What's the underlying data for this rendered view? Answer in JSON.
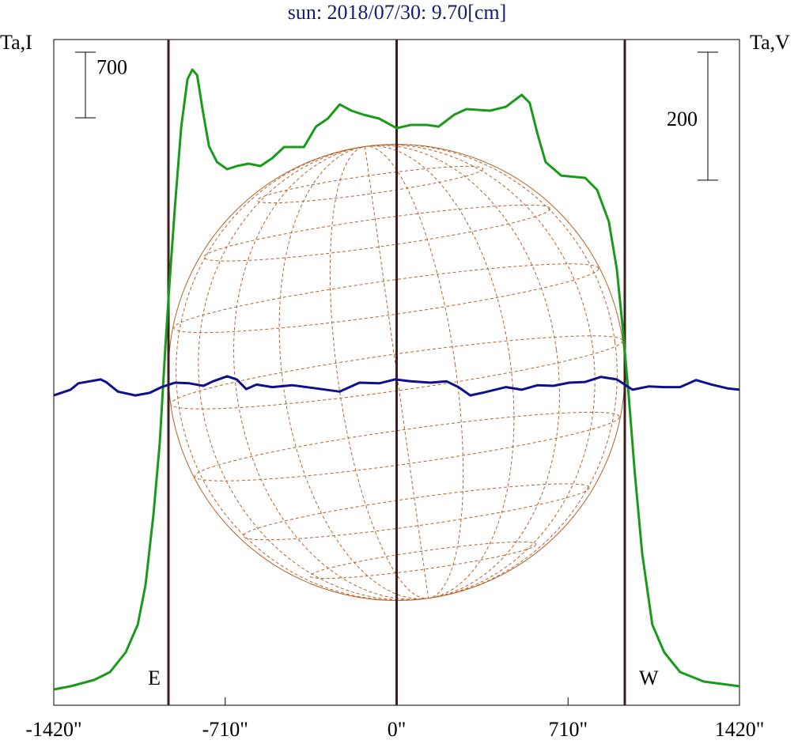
{
  "chart_data": {
    "type": "line",
    "title": "sun: 2018/07/30: 9.70[cm]",
    "ylabel": "Ta,I",
    "y2label": "Ta,V",
    "xlim": [
      -1420,
      1420
    ],
    "xticks": [
      {
        "value": -1420,
        "label": "-1420\""
      },
      {
        "value": -710,
        "label": "-710\""
      },
      {
        "value": 0,
        "label": "0\""
      },
      {
        "value": 710,
        "label": "710\""
      },
      {
        "value": 1420,
        "label": "1420\""
      }
    ],
    "ylim": [
      0,
      7100
    ],
    "y2lim": [
      -520,
      520
    ],
    "y_scale_bar": 700,
    "y2_scale_bar": 200,
    "disk_radius": 945,
    "disk_color": "#b5622a",
    "limb_lines": [
      {
        "x": -945,
        "label": "E"
      },
      {
        "x": 0
      },
      {
        "x": 945,
        "label": "W"
      }
    ],
    "limb_color": "#3a2020",
    "series": [
      {
        "name": "I",
        "color": "#1a9a1a",
        "x": [
          -1420,
          -1351,
          -1253,
          -1187,
          -1122,
          -1072,
          -1040,
          -1007,
          -981,
          -958,
          -941,
          -918,
          -892,
          -866,
          -846,
          -826,
          -803,
          -777,
          -744,
          -702,
          -662,
          -613,
          -564,
          -515,
          -466,
          -384,
          -334,
          -285,
          -236,
          -187,
          -138,
          -72,
          0,
          59,
          125,
          174,
          239,
          289,
          387,
          453,
          518,
          551,
          584,
          617,
          682,
          781,
          830,
          879,
          912,
          938,
          961,
          987,
          1017,
          1059,
          1108,
          1174,
          1272,
          1371,
          1420
        ],
        "values": [
          169,
          202,
          270,
          354,
          565,
          860,
          1282,
          2041,
          2799,
          3811,
          4486,
          5329,
          6172,
          6678,
          6779,
          6720,
          6341,
          5961,
          5793,
          5717,
          5751,
          5776,
          5751,
          5835,
          5953,
          5953,
          6172,
          6257,
          6408,
          6341,
          6299,
          6257,
          6155,
          6189,
          6189,
          6172,
          6299,
          6358,
          6341,
          6383,
          6510,
          6425,
          6088,
          5793,
          5649,
          5624,
          5498,
          5160,
          4654,
          3980,
          3305,
          2462,
          1619,
          860,
          565,
          354,
          253,
          219,
          202
        ]
      },
      {
        "name": "V",
        "color": "#10108c",
        "axis": "y2",
        "x": [
          -1420,
          -1351,
          -1318,
          -1226,
          -1204,
          -1154,
          -1082,
          -1023,
          -974,
          -918,
          -859,
          -800,
          -761,
          -702,
          -662,
          -623,
          -580,
          -515,
          -433,
          -334,
          -236,
          -154,
          -72,
          -7,
          59,
          141,
          207,
          256,
          305,
          354,
          453,
          518,
          584,
          649,
          715,
          781,
          846,
          912,
          977,
          1043,
          1108,
          1174,
          1240,
          1305,
          1371,
          1420
        ],
        "values": [
          -36,
          -27,
          -17,
          -11,
          -15,
          -30,
          -36,
          -32,
          -23,
          -16,
          -17,
          -21,
          -14,
          -6,
          -11,
          -26,
          -19,
          -23,
          -20,
          -25,
          -30,
          -16,
          -17,
          -11,
          -14,
          -16,
          -14,
          -23,
          -36,
          -32,
          -23,
          -27,
          -20,
          -21,
          -16,
          -15,
          -7,
          -11,
          -27,
          -22,
          -23,
          -23,
          -12,
          -19,
          -25,
          -27
        ]
      }
    ]
  }
}
